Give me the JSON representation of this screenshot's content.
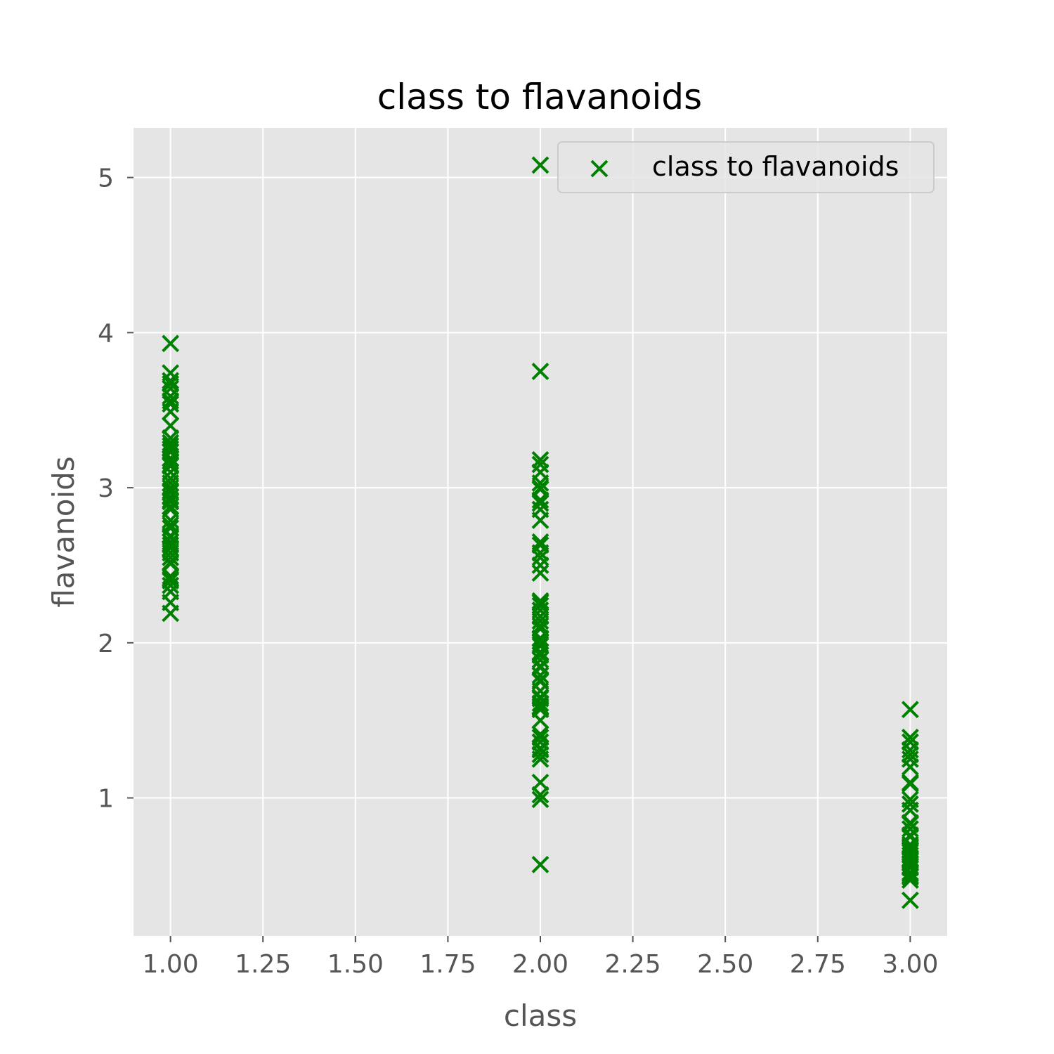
{
  "chart_data": {
    "type": "scatter",
    "title": "class to flavanoids",
    "xlabel": "class",
    "ylabel": "flavanoids",
    "xlim": [
      0.9,
      3.1
    ],
    "ylim": [
      0.11,
      5.32
    ],
    "x_ticks": [
      1.0,
      1.25,
      1.5,
      1.75,
      2.0,
      2.25,
      2.5,
      2.75,
      3.0
    ],
    "x_tick_labels": [
      "1.00",
      "1.25",
      "1.50",
      "1.75",
      "2.00",
      "2.25",
      "2.50",
      "2.75",
      "3.00"
    ],
    "y_ticks": [
      1,
      2,
      3,
      4,
      5
    ],
    "y_tick_labels": [
      "1",
      "2",
      "3",
      "4",
      "5"
    ],
    "grid": true,
    "legend": {
      "position": "top-right",
      "entries": [
        "class to flavanoids"
      ]
    },
    "marker": "x",
    "colors": {
      "points": "#008000",
      "plot_bg": "#e5e5e5",
      "grid": "#ffffff",
      "axis_text": "#555555"
    },
    "series": [
      {
        "name": "class to flavanoids",
        "points": [
          [
            1,
            3.93
          ],
          [
            1,
            3.74
          ],
          [
            1,
            3.69
          ],
          [
            1,
            3.67
          ],
          [
            1,
            3.64
          ],
          [
            1,
            3.59
          ],
          [
            1,
            3.56
          ],
          [
            1,
            3.54
          ],
          [
            1,
            3.49
          ],
          [
            1,
            3.4
          ],
          [
            1,
            3.32
          ],
          [
            1,
            3.29
          ],
          [
            1,
            3.27
          ],
          [
            1,
            3.25
          ],
          [
            1,
            3.23
          ],
          [
            1,
            3.19
          ],
          [
            1,
            3.17
          ],
          [
            1,
            3.15
          ],
          [
            1,
            3.14
          ],
          [
            1,
            3.1
          ],
          [
            1,
            3.06
          ],
          [
            1,
            3.03
          ],
          [
            1,
            3.0
          ],
          [
            1,
            2.98
          ],
          [
            1,
            2.97
          ],
          [
            1,
            2.94
          ],
          [
            1,
            2.92
          ],
          [
            1,
            2.91
          ],
          [
            1,
            2.88
          ],
          [
            1,
            2.86
          ],
          [
            1,
            2.79
          ],
          [
            1,
            2.76
          ],
          [
            1,
            2.74
          ],
          [
            1,
            2.69
          ],
          [
            1,
            2.68
          ],
          [
            1,
            2.65
          ],
          [
            1,
            2.63
          ],
          [
            1,
            2.61
          ],
          [
            1,
            2.58
          ],
          [
            1,
            2.55
          ],
          [
            1,
            2.52
          ],
          [
            1,
            2.51
          ],
          [
            1,
            2.43
          ],
          [
            1,
            2.41
          ],
          [
            1,
            2.4
          ],
          [
            1,
            2.37
          ],
          [
            1,
            2.33
          ],
          [
            1,
            2.26
          ],
          [
            1,
            2.19
          ],
          [
            2,
            5.08
          ],
          [
            2,
            3.75
          ],
          [
            2,
            3.18
          ],
          [
            2,
            3.15
          ],
          [
            2,
            3.1
          ],
          [
            2,
            3.03
          ],
          [
            2,
            3.0
          ],
          [
            2,
            2.99
          ],
          [
            2,
            2.92
          ],
          [
            2,
            2.9
          ],
          [
            2,
            2.86
          ],
          [
            2,
            2.79
          ],
          [
            2,
            2.65
          ],
          [
            2,
            2.63
          ],
          [
            2,
            2.58
          ],
          [
            2,
            2.55
          ],
          [
            2,
            2.5
          ],
          [
            2,
            2.45
          ],
          [
            2,
            2.27
          ],
          [
            2,
            2.26
          ],
          [
            2,
            2.24
          ],
          [
            2,
            2.21
          ],
          [
            2,
            2.17
          ],
          [
            2,
            2.14
          ],
          [
            2,
            2.11
          ],
          [
            2,
            2.09
          ],
          [
            2,
            2.03
          ],
          [
            2,
            2.01
          ],
          [
            2,
            1.99
          ],
          [
            2,
            1.98
          ],
          [
            2,
            1.94
          ],
          [
            2,
            1.92
          ],
          [
            2,
            1.89
          ],
          [
            2,
            1.85
          ],
          [
            2,
            1.84
          ],
          [
            2,
            1.79
          ],
          [
            2,
            1.76
          ],
          [
            2,
            1.75
          ],
          [
            2,
            1.69
          ],
          [
            2,
            1.65
          ],
          [
            2,
            1.64
          ],
          [
            2,
            1.61
          ],
          [
            2,
            1.59
          ],
          [
            2,
            1.58
          ],
          [
            2,
            1.57
          ],
          [
            2,
            1.5
          ],
          [
            2,
            1.41
          ],
          [
            2,
            1.39
          ],
          [
            2,
            1.36
          ],
          [
            2,
            1.32
          ],
          [
            2,
            1.31
          ],
          [
            2,
            1.28
          ],
          [
            2,
            1.25
          ],
          [
            2,
            1.1
          ],
          [
            2,
            1.02
          ],
          [
            2,
            0.99
          ],
          [
            2,
            0.57
          ],
          [
            3,
            1.57
          ],
          [
            3,
            1.39
          ],
          [
            3,
            1.36
          ],
          [
            3,
            1.31
          ],
          [
            3,
            1.28
          ],
          [
            3,
            1.25
          ],
          [
            3,
            1.2
          ],
          [
            3,
            1.1
          ],
          [
            3,
            1.09
          ],
          [
            3,
            0.99
          ],
          [
            3,
            0.96
          ],
          [
            3,
            0.92
          ],
          [
            3,
            0.84
          ],
          [
            3,
            0.83
          ],
          [
            3,
            0.8
          ],
          [
            3,
            0.76
          ],
          [
            3,
            0.75
          ],
          [
            3,
            0.7
          ],
          [
            3,
            0.69
          ],
          [
            3,
            0.68
          ],
          [
            3,
            0.66
          ],
          [
            3,
            0.65
          ],
          [
            3,
            0.63
          ],
          [
            3,
            0.61
          ],
          [
            3,
            0.6
          ],
          [
            3,
            0.58
          ],
          [
            3,
            0.56
          ],
          [
            3,
            0.55
          ],
          [
            3,
            0.52
          ],
          [
            3,
            0.51
          ],
          [
            3,
            0.5
          ],
          [
            3,
            0.49
          ],
          [
            3,
            0.47
          ],
          [
            3,
            0.34
          ]
        ]
      }
    ]
  }
}
